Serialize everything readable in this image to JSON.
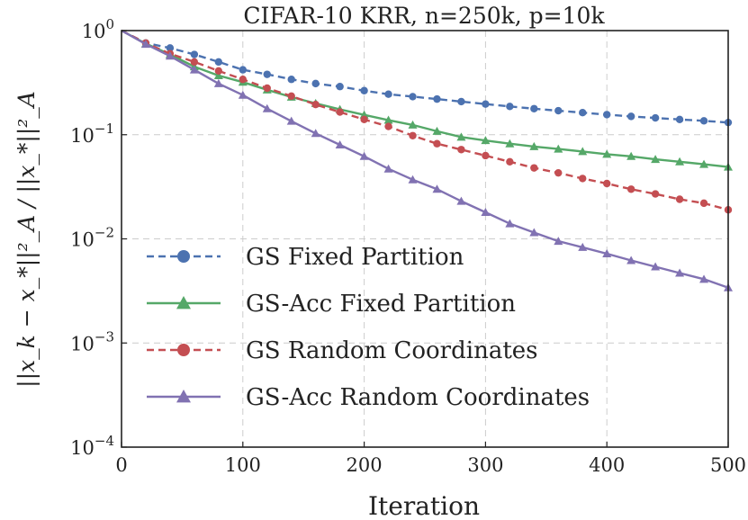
{
  "chart_data": {
    "type": "line",
    "title": "CIFAR-10 KRR, n=250k, p=10k",
    "xlabel": "Iteration",
    "ylabel": "||x_k − x_*||²_A / ||x_*||²_A",
    "xlim": [
      0,
      500
    ],
    "ylim_log10": [
      -4,
      0
    ],
    "yscale": "log",
    "grid": true,
    "legend_position": "lower-left",
    "x_ticks": [
      "0",
      "100",
      "200",
      "300",
      "400",
      "500"
    ],
    "y_ticks": [
      {
        "base": "10",
        "exp": "0",
        "value": 1
      },
      {
        "base": "10",
        "exp": "−1",
        "value": 0.1
      },
      {
        "base": "10",
        "exp": "−2",
        "value": 0.01
      },
      {
        "base": "10",
        "exp": "−3",
        "value": 0.001
      },
      {
        "base": "10",
        "exp": "−4",
        "value": 0.0001
      }
    ],
    "series": [
      {
        "name": "GS Fixed Partition",
        "color": "#4c72b0",
        "dashed": true,
        "marker": "circle",
        "x": [
          0,
          20,
          40,
          60,
          80,
          100,
          120,
          140,
          160,
          180,
          200,
          220,
          240,
          260,
          280,
          300,
          320,
          340,
          360,
          380,
          400,
          420,
          440,
          460,
          480,
          500
        ],
        "y": [
          1.0,
          0.76,
          0.68,
          0.59,
          0.5,
          0.42,
          0.38,
          0.34,
          0.31,
          0.29,
          0.265,
          0.245,
          0.232,
          0.22,
          0.208,
          0.197,
          0.187,
          0.178,
          0.17,
          0.163,
          0.156,
          0.15,
          0.145,
          0.14,
          0.136,
          0.131
        ]
      },
      {
        "name": "GS-Acc Fixed Partition",
        "color": "#55a868",
        "dashed": false,
        "marker": "triangle",
        "x": [
          0,
          20,
          40,
          60,
          80,
          100,
          120,
          140,
          160,
          180,
          200,
          220,
          240,
          260,
          280,
          300,
          320,
          340,
          360,
          380,
          400,
          420,
          440,
          460,
          480,
          500
        ],
        "y": [
          1.0,
          0.75,
          0.59,
          0.45,
          0.37,
          0.32,
          0.27,
          0.23,
          0.2,
          0.175,
          0.155,
          0.138,
          0.124,
          0.108,
          0.095,
          0.088,
          0.082,
          0.077,
          0.073,
          0.069,
          0.065,
          0.062,
          0.058,
          0.055,
          0.052,
          0.049
        ]
      },
      {
        "name": "GS Random Coordinates",
        "color": "#c44e52",
        "dashed": true,
        "marker": "circle",
        "x": [
          0,
          20,
          40,
          60,
          80,
          100,
          120,
          140,
          160,
          180,
          200,
          220,
          240,
          260,
          280,
          300,
          320,
          340,
          360,
          380,
          400,
          420,
          440,
          460,
          480,
          500
        ],
        "y": [
          1.0,
          0.76,
          0.6,
          0.5,
          0.41,
          0.34,
          0.28,
          0.235,
          0.195,
          0.165,
          0.14,
          0.12,
          0.098,
          0.082,
          0.072,
          0.063,
          0.055,
          0.048,
          0.043,
          0.038,
          0.034,
          0.03,
          0.027,
          0.024,
          0.022,
          0.019
        ]
      },
      {
        "name": "GS-Acc Random Coordinates",
        "color": "#8172b2",
        "dashed": false,
        "marker": "triangle",
        "x": [
          0,
          20,
          40,
          60,
          80,
          100,
          120,
          140,
          160,
          180,
          200,
          220,
          240,
          260,
          280,
          300,
          320,
          340,
          360,
          380,
          400,
          420,
          440,
          460,
          480,
          500
        ],
        "y": [
          1.0,
          0.74,
          0.57,
          0.42,
          0.31,
          0.24,
          0.178,
          0.135,
          0.103,
          0.08,
          0.062,
          0.047,
          0.037,
          0.03,
          0.023,
          0.018,
          0.014,
          0.0115,
          0.0095,
          0.0083,
          0.0072,
          0.0062,
          0.0054,
          0.0047,
          0.0041,
          0.0034
        ]
      }
    ]
  }
}
